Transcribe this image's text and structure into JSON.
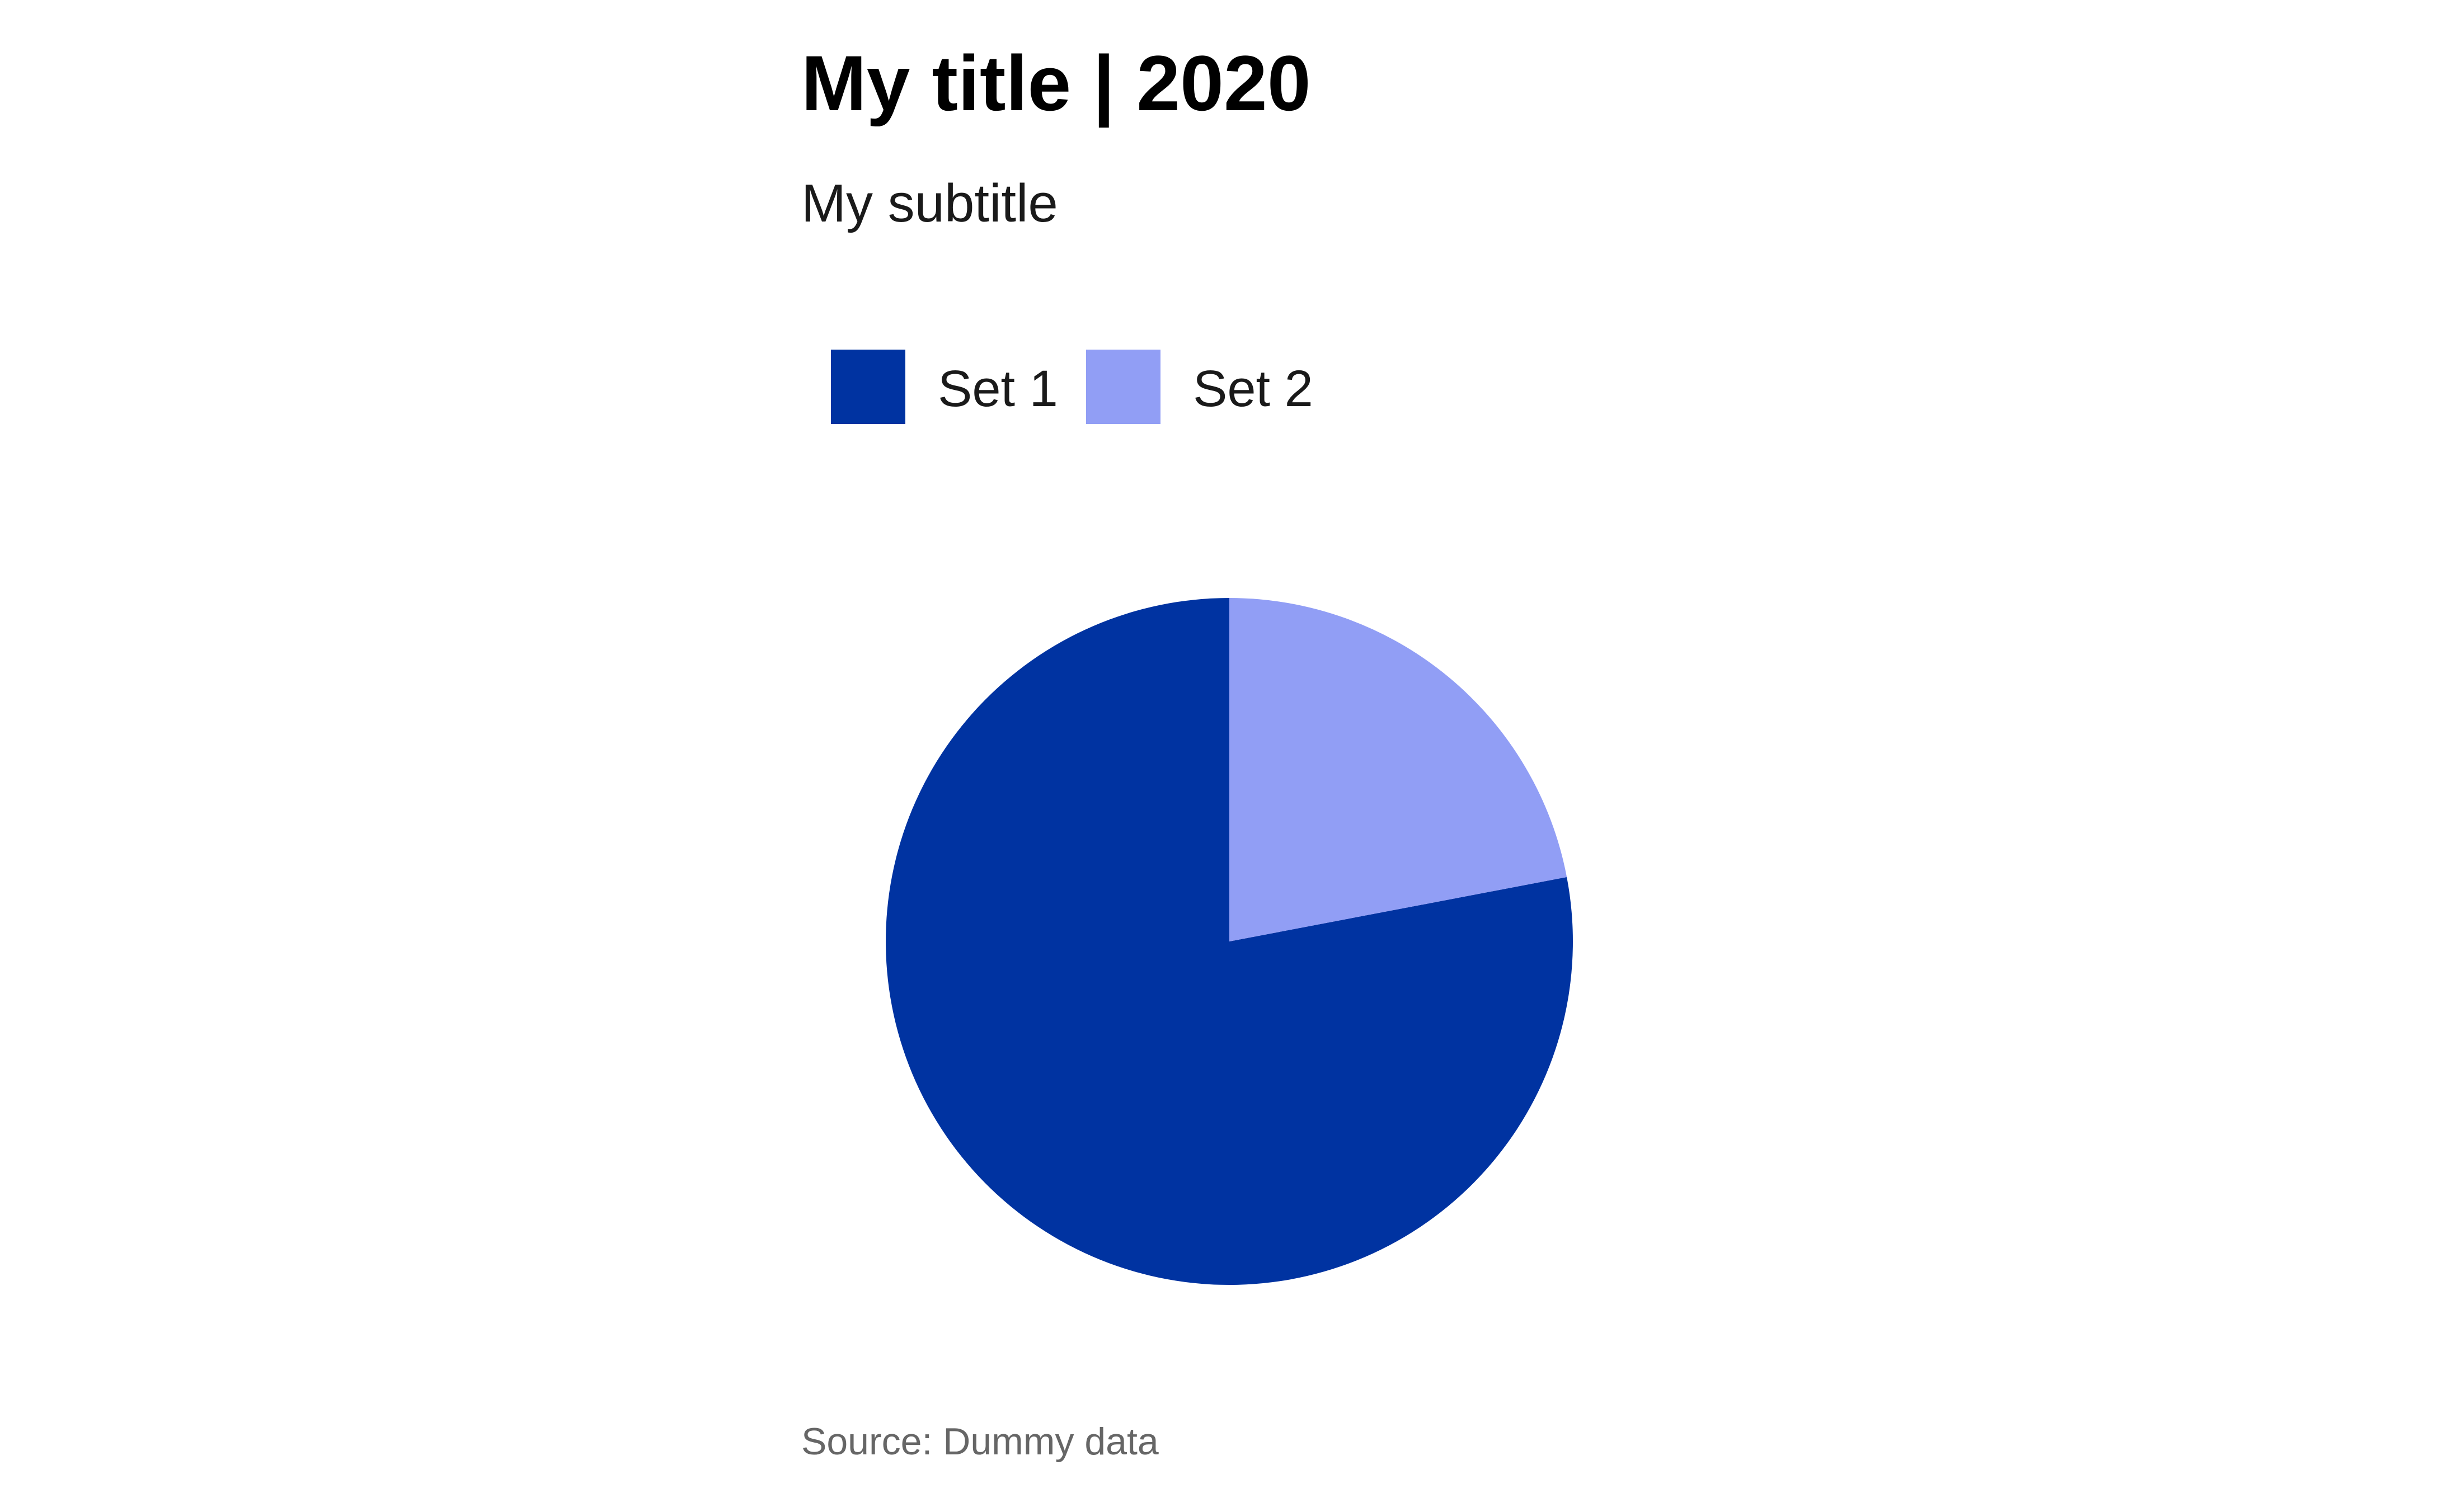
{
  "chart_data": {
    "type": "pie",
    "title": "My title | 2020",
    "subtitle": "My subtitle",
    "caption": "Source: Dummy data",
    "legend_position": "top",
    "categories": [
      "Set 1",
      "Set 2"
    ],
    "values": [
      78,
      22
    ],
    "colors": [
      "#0033A1",
      "#919EF5"
    ],
    "start_angle_deg": 0,
    "direction": "counterclockwise"
  }
}
